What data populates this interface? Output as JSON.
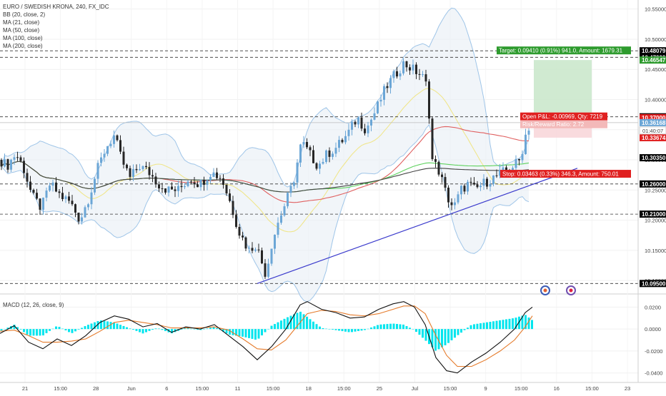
{
  "header": {
    "symbol_title": "EURO / SWEDISH KRONA, 240, FX_IDC",
    "indicators": [
      "BB (20, close, 2)",
      "MA (21, close)",
      "MA (50, close)",
      "MA (100, close)",
      "MA (200, close)"
    ]
  },
  "macd": {
    "title": "MACD (12, 26, close, 9)"
  },
  "annotations": {
    "target": "Target: 0.09410 (0.91%) 941.0, Amount: 1679.31",
    "open_pl": "Open P&L: -0.00969, Qty: 7219",
    "risk_reward": "Risk/Reward Ratio: 2.72",
    "stop": "Stop: 0.03463 (0.33%) 346.3, Amount: 750.01",
    "countdown": "01:40:07"
  },
  "colors": {
    "up_candle": "#6ba6d6",
    "down_candle": "#262626",
    "bb": "#9fc5e8",
    "ma21": "#f0e68c",
    "ma50": "#e06060",
    "ma100": "#5ed25e",
    "ma200": "#444444",
    "trendline": "#3a3acc",
    "target_zone": "#c8e6c9",
    "stop_zone": "#f8d7da",
    "target_label": "#2e9b2e",
    "stop_label": "#e02020",
    "macd_line": "#111111",
    "signal_line": "#e57a2a",
    "histogram": "#00e5ee"
  },
  "chart_data": {
    "type": "candlestick",
    "price_axis": {
      "ticks": [
        10.55,
        10.5,
        10.45,
        10.4,
        10.35,
        10.3,
        10.25,
        10.2,
        10.15,
        10.1
      ],
      "tick_labels": [
        "10.55000",
        "10.50000",
        "10.45000",
        "10.40000",
        "10.35000",
        "10.30000",
        "10.25000",
        "10.20000",
        "10.15000",
        "10.10000"
      ],
      "range": [
        10.08,
        10.565
      ]
    },
    "time_axis": {
      "labels": [
        "21",
        "15:00",
        "28",
        "Jun",
        "6",
        "15:00",
        "11",
        "15:00",
        "18",
        "15:00",
        "25",
        "Jul",
        "15:00",
        "9",
        "15:00",
        "16",
        "15:00",
        "23"
      ]
    },
    "levels": [
      {
        "price": 10.48079,
        "label": "10.48079",
        "style": "dashed",
        "badge": "#000000"
      },
      {
        "price": 10.47,
        "label": "10.47000",
        "style": "dashed",
        "badge": "#000000"
      },
      {
        "price": 10.46547,
        "label": "10.46547",
        "style": "none",
        "badge": "#2e9b2e"
      },
      {
        "price": 10.37137,
        "label": "10.37137",
        "style": "dashed",
        "badge": "#000000"
      },
      {
        "price": 10.37,
        "label": "10.37000",
        "style": "none",
        "badge": "#e02020"
      },
      {
        "price": 10.36168,
        "label": "10.36168",
        "style": "solid-gray",
        "badge": "#6ba6d6"
      },
      {
        "price": 10.33674,
        "label": "10.33674",
        "style": "none",
        "badge": "#e02020"
      },
      {
        "price": 10.3035,
        "label": "10.30350",
        "style": "none",
        "badge": "#000000"
      },
      {
        "price": 10.26,
        "label": "10.26000",
        "style": "dashed",
        "badge": "#000000"
      },
      {
        "price": 10.21,
        "label": "10.21000",
        "style": "dashed",
        "badge": "#000000"
      },
      {
        "price": 10.095,
        "label": "10.09500",
        "style": "dashed",
        "badge": "#000000"
      }
    ],
    "price_path": [
      [
        0,
        10.3
      ],
      [
        10,
        10.29
      ],
      [
        22,
        10.31
      ],
      [
        32,
        10.29
      ],
      [
        45,
        10.24
      ],
      [
        58,
        10.22
      ],
      [
        70,
        10.26
      ],
      [
        85,
        10.24
      ],
      [
        98,
        10.23
      ],
      [
        112,
        10.2
      ],
      [
        125,
        10.24
      ],
      [
        135,
        10.28
      ],
      [
        148,
        10.32
      ],
      [
        160,
        10.34
      ],
      [
        170,
        10.3
      ],
      [
        182,
        10.27
      ],
      [
        195,
        10.29
      ],
      [
        208,
        10.28
      ],
      [
        222,
        10.26
      ],
      [
        235,
        10.25
      ],
      [
        250,
        10.25
      ],
      [
        265,
        10.27
      ],
      [
        280,
        10.26
      ],
      [
        295,
        10.28
      ],
      [
        310,
        10.27
      ],
      [
        322,
        10.23
      ],
      [
        335,
        10.18
      ],
      [
        348,
        10.15
      ],
      [
        358,
        10.16
      ],
      [
        372,
        10.11
      ],
      [
        380,
        10.16
      ],
      [
        390,
        10.2
      ],
      [
        400,
        10.23
      ],
      [
        410,
        10.26
      ],
      [
        422,
        10.33
      ],
      [
        433,
        10.31
      ],
      [
        445,
        10.29
      ],
      [
        458,
        10.31
      ],
      [
        470,
        10.32
      ],
      [
        485,
        10.34
      ],
      [
        500,
        10.37
      ],
      [
        512,
        10.35
      ],
      [
        525,
        10.38
      ],
      [
        540,
        10.42
      ],
      [
        552,
        10.44
      ],
      [
        565,
        10.46
      ],
      [
        578,
        10.45
      ],
      [
        590,
        10.44
      ],
      [
        598,
        10.42
      ],
      [
        605,
        10.3
      ],
      [
        615,
        10.28
      ],
      [
        625,
        10.24
      ],
      [
        635,
        10.22
      ],
      [
        645,
        10.25
      ],
      [
        655,
        10.26
      ],
      [
        665,
        10.25
      ],
      [
        675,
        10.26
      ],
      [
        690,
        10.27
      ],
      [
        705,
        10.28
      ],
      [
        718,
        10.29
      ],
      [
        728,
        10.3
      ],
      [
        735,
        10.34
      ],
      [
        742,
        10.36
      ]
    ],
    "trendline": [
      [
        360,
        10.095
      ],
      [
        808,
        10.286
      ]
    ],
    "target_zone": {
      "x0": 747,
      "x1": 828,
      "top": 10.46547,
      "bottom": 10.37
    },
    "stop_zone": {
      "x0": 747,
      "x1": 828,
      "top": 10.37,
      "bottom": 10.33674
    },
    "macd": {
      "ticks": [
        0.02,
        0.0,
        -0.02,
        -0.04
      ],
      "tick_labels": [
        "0.0200",
        "0.0000",
        "-0.0200",
        "-0.0400"
      ],
      "range": [
        -0.048,
        0.03
      ],
      "macd_line": [
        [
          0,
          -0.004
        ],
        [
          20,
          0.003
        ],
        [
          40,
          -0.012
        ],
        [
          60,
          -0.018
        ],
        [
          80,
          -0.009
        ],
        [
          100,
          -0.015
        ],
        [
          120,
          -0.006
        ],
        [
          140,
          0.006
        ],
        [
          160,
          0.012
        ],
        [
          180,
          0.009
        ],
        [
          200,
          0.002
        ],
        [
          220,
          0.005
        ],
        [
          240,
          -0.003
        ],
        [
          260,
          0.002
        ],
        [
          280,
          0.0
        ],
        [
          300,
          0.004
        ],
        [
          320,
          -0.006
        ],
        [
          340,
          -0.016
        ],
        [
          360,
          -0.028
        ],
        [
          380,
          -0.016
        ],
        [
          400,
          0.0
        ],
        [
          420,
          0.022
        ],
        [
          430,
          0.025
        ],
        [
          450,
          0.018
        ],
        [
          470,
          0.015
        ],
        [
          490,
          0.01
        ],
        [
          510,
          0.011
        ],
        [
          530,
          0.018
        ],
        [
          550,
          0.023
        ],
        [
          565,
          0.025
        ],
        [
          580,
          0.02
        ],
        [
          595,
          0.004
        ],
        [
          610,
          -0.026
        ],
        [
          625,
          -0.038
        ],
        [
          640,
          -0.04
        ],
        [
          660,
          -0.03
        ],
        [
          680,
          -0.022
        ],
        [
          700,
          -0.012
        ],
        [
          720,
          0.0
        ],
        [
          735,
          0.015
        ],
        [
          745,
          0.02
        ]
      ],
      "signal_line": [
        [
          0,
          -0.002
        ],
        [
          20,
          -0.001
        ],
        [
          40,
          -0.006
        ],
        [
          60,
          -0.012
        ],
        [
          80,
          -0.012
        ],
        [
          100,
          -0.011
        ],
        [
          120,
          -0.009
        ],
        [
          140,
          -0.002
        ],
        [
          160,
          0.006
        ],
        [
          180,
          0.008
        ],
        [
          200,
          0.006
        ],
        [
          220,
          0.004
        ],
        [
          240,
          0.001
        ],
        [
          260,
          0.001
        ],
        [
          280,
          0.001
        ],
        [
          300,
          0.002
        ],
        [
          320,
          -0.001
        ],
        [
          340,
          -0.009
        ],
        [
          360,
          -0.018
        ],
        [
          380,
          -0.019
        ],
        [
          400,
          -0.01
        ],
        [
          420,
          0.006
        ],
        [
          430,
          0.014
        ],
        [
          450,
          0.017
        ],
        [
          470,
          0.016
        ],
        [
          490,
          0.013
        ],
        [
          510,
          0.012
        ],
        [
          530,
          0.014
        ],
        [
          550,
          0.018
        ],
        [
          565,
          0.021
        ],
        [
          580,
          0.021
        ],
        [
          595,
          0.014
        ],
        [
          610,
          -0.006
        ],
        [
          625,
          -0.024
        ],
        [
          640,
          -0.034
        ],
        [
          660,
          -0.034
        ],
        [
          680,
          -0.028
        ],
        [
          700,
          -0.02
        ],
        [
          720,
          -0.01
        ],
        [
          735,
          0.002
        ],
        [
          745,
          0.012
        ]
      ]
    }
  }
}
